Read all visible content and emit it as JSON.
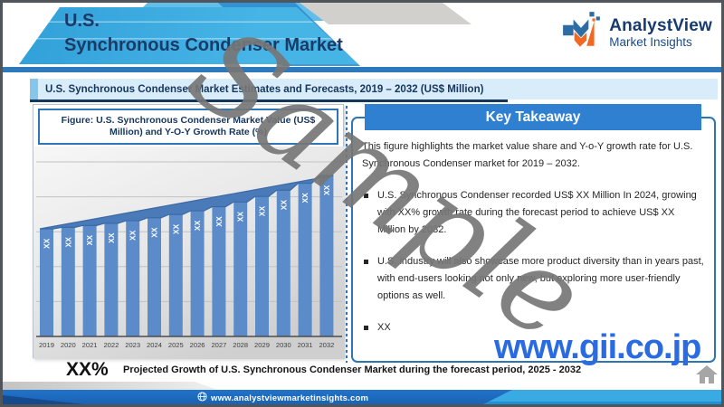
{
  "header": {
    "title_line1": "U.S.",
    "title_line2": "Synchronous Condenser Market",
    "logo_name": "AnalystView",
    "logo_tagline": "Market Insights"
  },
  "subtitle_bar": {
    "text": "U.S. Synchronous Condenser Market Estimates and Forecasts, 2019 – 2032 (US$ Million)"
  },
  "figure": {
    "title": "Figure: U.S. Synchronous Condenser Market Value (US$ Million) and Y-O-Y Growth Rate (%)"
  },
  "chart_data": {
    "type": "bar",
    "title": "U.S. Synchronous Condenser Market Value (US$ Million) and Y-O-Y Growth Rate (%)",
    "categories": [
      "2019",
      "2020",
      "2021",
      "2022",
      "2023",
      "2024",
      "2025",
      "2026",
      "2027",
      "2028",
      "2029",
      "2030",
      "2031",
      "2032"
    ],
    "bar_value_label": "XX",
    "values_masked": true,
    "series": [
      {
        "name": "Market Value (US$ Million)",
        "values": [
          100,
          102,
          104.5,
          107.5,
          111,
          115,
          119.5,
          124.5,
          130,
          136.5,
          144,
          152.5,
          162,
          172.5
        ]
      }
    ],
    "overlay": "straight trend line/area connecting bar tops",
    "xlabel": "",
    "ylabel": "",
    "grid": true,
    "legend_position": "none",
    "bar_color": "#5b8bc9",
    "area_color": "#4a7ab8",
    "plot_bg": "gray gradient"
  },
  "key_takeaway": {
    "title": "Key Takeaway",
    "intro": "This figure highlights the market value share and Y-o-Y growth rate for U.S. Synchronous Condenser market for 2019 – 2032.",
    "bullets": [
      "U.S. Synchronous Condenser recorded US$ XX Million In 2024, growing with XX% growth rate during the forecast period to achieve US$ XX Million by 2032.",
      "U.S. industry will also showcase more product diversity than in years past, with end-users looking not only new, but exploring more user-friendly options as well.",
      "XX"
    ]
  },
  "growth_note": {
    "value": "XX%",
    "text": "Projected Growth of U.S. Synchronous Condenser Market during the forecast period, 2025 - 2032"
  },
  "footer": {
    "website": "www.analystviewmarketinsights.com"
  },
  "watermarks": {
    "sample": "Sample",
    "gii_link": "www.gii.co.jp"
  },
  "colors": {
    "banner_blue": "#3aa9e0",
    "divider_blue": "#2e78bc",
    "accent_blue": "#2e75b6",
    "kt_header_blue": "#2f80d0",
    "navy_text": "#17365d",
    "bar_blue": "#5b8bc9",
    "footer_dark_blue": "#1e6cc0",
    "footer_light_blue": "#3aabe2",
    "gii_blue": "#2a6be2"
  }
}
